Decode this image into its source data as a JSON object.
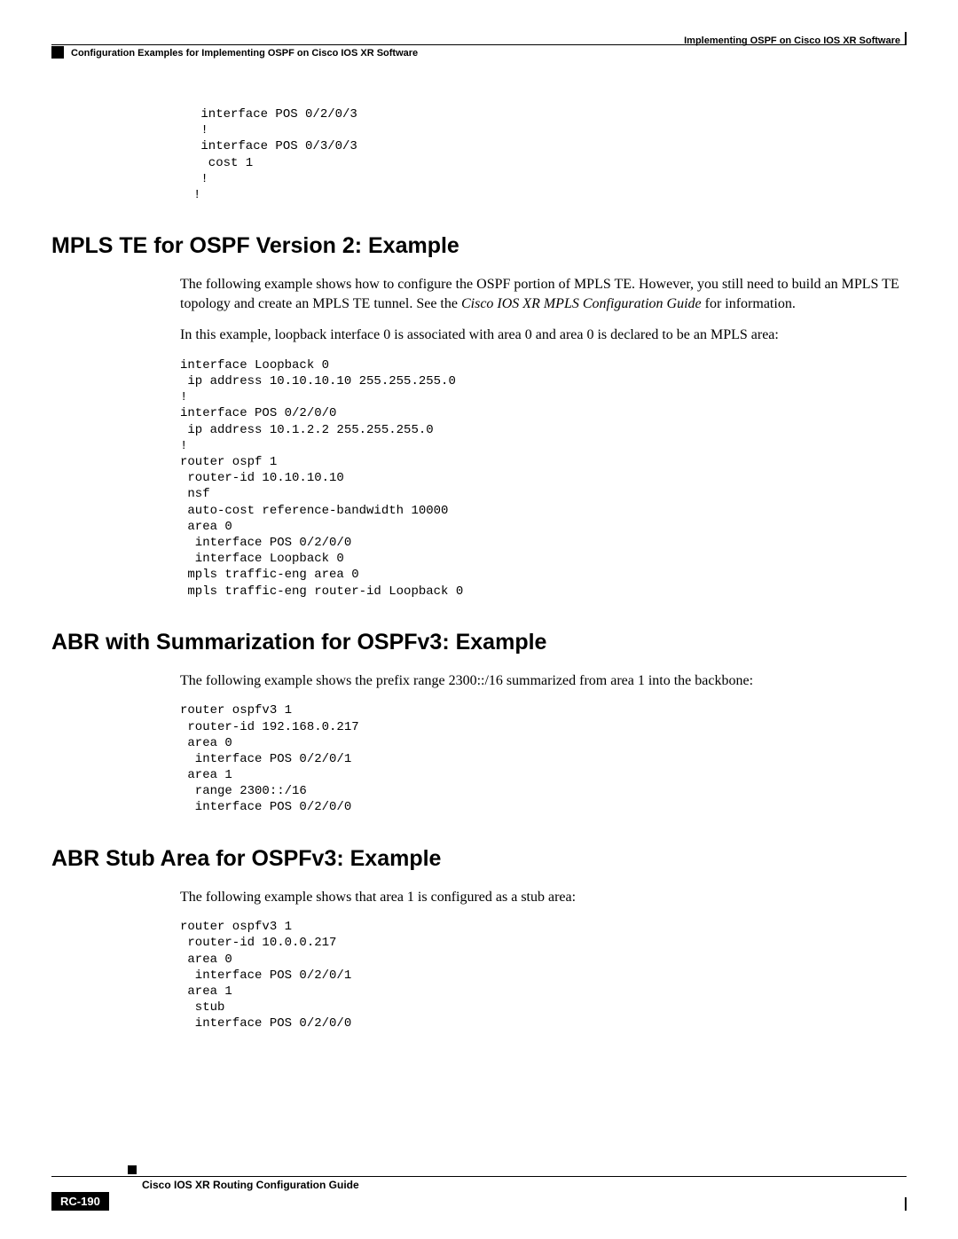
{
  "header": {
    "right": "Implementing OSPF on Cisco IOS XR Software",
    "left": "Configuration Examples for Implementing OSPF on Cisco IOS XR Software"
  },
  "intro_code": " interface POS 0/2/0/3\n !\n interface POS 0/3/0/3\n  cost 1\n !\n!",
  "sections": [
    {
      "heading": "MPLS TE for OSPF Version 2: Example",
      "para1_a": "The following example shows how to configure the OSPF portion of MPLS TE. However, you still need to build an MPLS TE topology and create an MPLS TE tunnel. See the ",
      "para1_italic": "Cisco IOS XR MPLS Configuration Guide",
      "para1_b": " for information.",
      "para2": "In this example, loopback interface 0 is associated with area 0 and area 0 is declared to be an MPLS area:",
      "code": "interface Loopback 0\n ip address 10.10.10.10 255.255.255.0\n!\ninterface POS 0/2/0/0\n ip address 10.1.2.2 255.255.255.0\n!\nrouter ospf 1\n router-id 10.10.10.10\n nsf\n auto-cost reference-bandwidth 10000\n area 0\n  interface POS 0/2/0/0\n  interface Loopback 0\n mpls traffic-eng area 0\n mpls traffic-eng router-id Loopback 0"
    },
    {
      "heading": "ABR with Summarization for OSPFv3: Example",
      "para1": "The following example shows the prefix range 2300::/16 summarized from area 1 into the backbone:",
      "code": "router ospfv3 1\n router-id 192.168.0.217\n area 0\n  interface POS 0/2/0/1\n area 1\n  range 2300::/16\n  interface POS 0/2/0/0"
    },
    {
      "heading": "ABR Stub Area for OSPFv3: Example",
      "para1": "The following example shows that area 1 is configured as a stub area:",
      "code": "router ospfv3 1\n router-id 10.0.0.217\n area 0\n  interface POS 0/2/0/1\n area 1\n  stub\n  interface POS 0/2/0/0"
    }
  ],
  "footer": {
    "title": "Cisco IOS XR Routing Configuration Guide",
    "page": "RC-190"
  }
}
